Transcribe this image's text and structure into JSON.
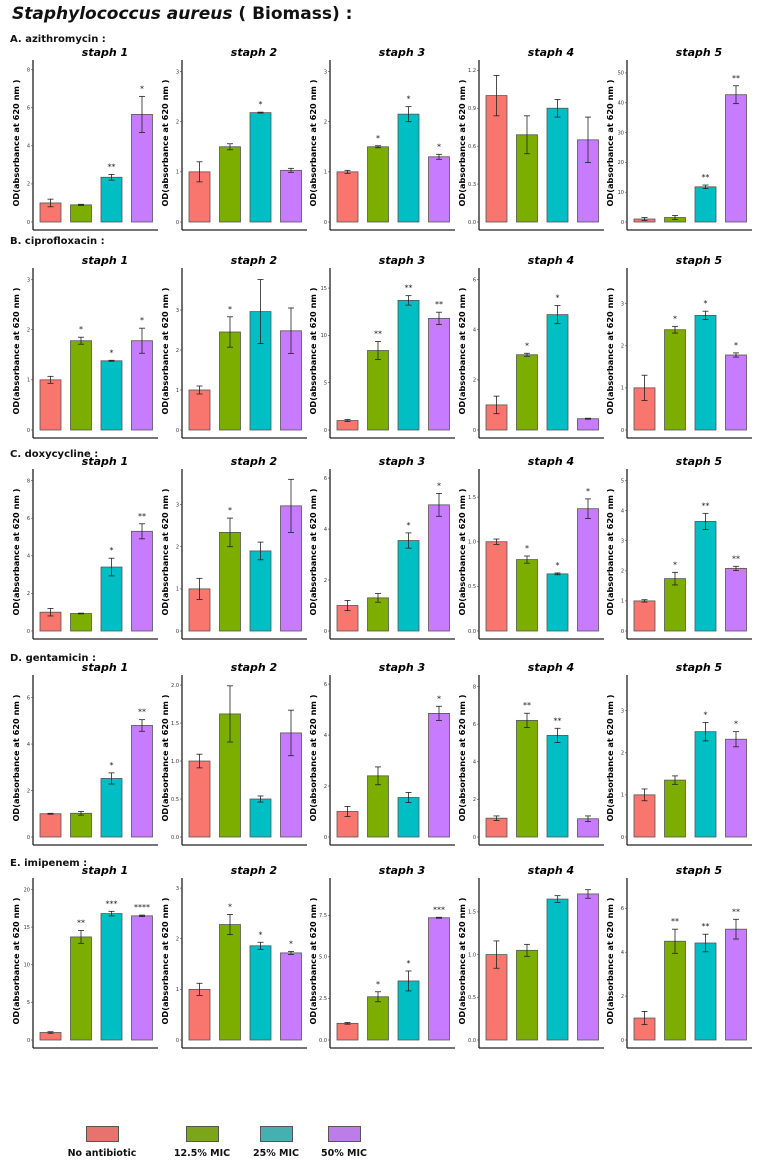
{
  "chart_data": {
    "type": "bar",
    "title_italic": "Staphylococcus aureus",
    "title_rest": " ( Biomass) :",
    "categories": [
      "No antibiotic",
      "12.5% MIC",
      "25% MIC",
      "50% MIC"
    ],
    "colors": [
      "#F8766D",
      "#7CAE00",
      "#00BFC4",
      "#C77CFF"
    ],
    "ylabel": "OD(absorbance at 620 nm )",
    "legend_position": "bottom",
    "rows": [
      {
        "label": "A. azithromycin :",
        "panels": [
          {
            "title": "staph 1",
            "ymax": 8.3,
            "yticks": [
              0,
              2,
              4,
              6,
              8
            ],
            "ytick_labels": [
              "0",
              "2",
              "4",
              "6",
              "8"
            ],
            "values": [
              1.0,
              0.9,
              2.35,
              5.65
            ],
            "errors": [
              0.2,
              0.03,
              0.15,
              0.95
            ],
            "significance": [
              "",
              "",
              "**",
              "*"
            ]
          },
          {
            "title": "staph 2",
            "ymax": 3.15,
            "yticks": [
              0,
              1,
              2,
              3
            ],
            "ytick_labels": [
              "0",
              "1",
              "2",
              "3"
            ],
            "values": [
              1.0,
              1.5,
              2.18,
              1.03
            ],
            "errors": [
              0.2,
              0.06,
              0.01,
              0.04
            ],
            "significance": [
              "",
              "",
              "*",
              ""
            ]
          },
          {
            "title": "staph 3",
            "ymax": 3.15,
            "yticks": [
              0,
              1,
              2,
              3
            ],
            "ytick_labels": [
              "0",
              "1",
              "2",
              "3"
            ],
            "values": [
              1.0,
              1.5,
              2.15,
              1.3
            ],
            "errors": [
              0.03,
              0.02,
              0.15,
              0.05
            ],
            "significance": [
              "",
              "*",
              "*",
              "*"
            ]
          },
          {
            "title": "staph 4",
            "ymax": 1.25,
            "yticks": [
              0,
              0.3,
              0.6,
              0.9,
              1.2
            ],
            "ytick_labels": [
              "0.0",
              "0.3",
              "0.6",
              "0.9",
              "1.2"
            ],
            "values": [
              1.0,
              0.69,
              0.9,
              0.65
            ],
            "errors": [
              0.16,
              0.15,
              0.07,
              0.18
            ],
            "significance": [
              "",
              "",
              "",
              ""
            ]
          },
          {
            "title": "staph 5",
            "ymax": 53,
            "yticks": [
              0,
              10,
              20,
              30,
              40,
              50
            ],
            "ytick_labels": [
              "0",
              "10",
              "20",
              "30",
              "40",
              "50"
            ],
            "values": [
              1.0,
              1.5,
              11.8,
              42.7
            ],
            "errors": [
              0.5,
              0.7,
              0.6,
              3.0
            ],
            "significance": [
              "",
              "",
              "**",
              "**"
            ]
          }
        ]
      },
      {
        "label": "B. ciprofloxacin :",
        "panels": [
          {
            "title": "staph 1",
            "ymax": 3.15,
            "yticks": [
              0,
              1,
              2,
              3
            ],
            "ytick_labels": [
              "0",
              "1",
              "2",
              "3"
            ],
            "values": [
              1.0,
              1.78,
              1.38,
              1.78
            ],
            "errors": [
              0.07,
              0.07,
              0.01,
              0.25
            ],
            "significance": [
              "",
              "*",
              "*",
              "*"
            ]
          },
          {
            "title": "staph 2",
            "ymax": 3.95,
            "yticks": [
              0,
              1,
              2,
              3
            ],
            "ytick_labels": [
              "0",
              "1",
              "2",
              "3"
            ],
            "values": [
              1.0,
              2.45,
              2.96,
              2.48
            ],
            "errors": [
              0.1,
              0.38,
              0.8,
              0.57
            ],
            "significance": [
              "",
              "*",
              "",
              ""
            ]
          },
          {
            "title": "staph 3",
            "ymax": 16.7,
            "yticks": [
              0,
              5,
              10,
              15
            ],
            "ytick_labels": [
              "0",
              "5",
              "10",
              "15"
            ],
            "values": [
              1.0,
              8.4,
              13.7,
              11.8
            ],
            "errors": [
              0.1,
              0.95,
              0.5,
              0.65
            ],
            "significance": [
              "",
              "**",
              "**",
              "**"
            ]
          },
          {
            "title": "staph 4",
            "ymax": 6.3,
            "yticks": [
              0,
              2,
              4,
              6
            ],
            "ytick_labels": [
              "0",
              "2",
              "4",
              "6"
            ],
            "values": [
              1.0,
              3.0,
              4.6,
              0.45
            ],
            "errors": [
              0.35,
              0.06,
              0.36,
              0.02
            ],
            "significance": [
              "",
              "*",
              "*",
              ""
            ]
          },
          {
            "title": "staph 5",
            "ymax": 3.75,
            "yticks": [
              0,
              1,
              2,
              3
            ],
            "ytick_labels": [
              "0",
              "1",
              "2",
              "3"
            ],
            "values": [
              1.0,
              2.38,
              2.72,
              1.78
            ],
            "errors": [
              0.3,
              0.08,
              0.1,
              0.05
            ],
            "significance": [
              "",
              "*",
              "*",
              "*"
            ]
          }
        ]
      },
      {
        "label": "C. doxycycline :",
        "panels": [
          {
            "title": "staph 1",
            "ymax": 8.4,
            "yticks": [
              0,
              2,
              4,
              6,
              8
            ],
            "ytick_labels": [
              "0",
              "2",
              "4",
              "6",
              "8"
            ],
            "values": [
              1.0,
              0.93,
              3.4,
              5.3
            ],
            "errors": [
              0.2,
              0.02,
              0.47,
              0.4
            ],
            "significance": [
              "",
              "",
              "*",
              "**"
            ]
          },
          {
            "title": "staph 2",
            "ymax": 3.75,
            "yticks": [
              0,
              1,
              2,
              3
            ],
            "ytick_labels": [
              "0",
              "1",
              "2",
              "3"
            ],
            "values": [
              1.0,
              2.34,
              1.9,
              2.97
            ],
            "errors": [
              0.25,
              0.34,
              0.21,
              0.63
            ],
            "significance": [
              "",
              "*",
              "",
              ""
            ]
          },
          {
            "title": "staph 3",
            "ymax": 6.2,
            "yticks": [
              0,
              2,
              4,
              6
            ],
            "ytick_labels": [
              "0",
              "2",
              "4",
              "6"
            ],
            "values": [
              1.0,
              1.3,
              3.55,
              4.95
            ],
            "errors": [
              0.2,
              0.17,
              0.3,
              0.45
            ],
            "significance": [
              "",
              "",
              "*",
              "*"
            ]
          },
          {
            "title": "staph 4",
            "ymax": 1.77,
            "yticks": [
              0,
              0.5,
              1.0,
              1.5
            ],
            "ytick_labels": [
              "0.0",
              "0.5",
              "1.0",
              "1.5"
            ],
            "values": [
              1.0,
              0.8,
              0.64,
              1.37
            ],
            "errors": [
              0.03,
              0.04,
              0.01,
              0.11
            ],
            "significance": [
              "",
              "*",
              "*",
              "*"
            ]
          },
          {
            "title": "staph 5",
            "ymax": 5.25,
            "yticks": [
              0,
              1,
              2,
              3,
              4,
              5
            ],
            "ytick_labels": [
              "0",
              "1",
              "2",
              "3",
              "4",
              "5"
            ],
            "values": [
              1.0,
              1.74,
              3.64,
              2.08
            ],
            "errors": [
              0.04,
              0.21,
              0.27,
              0.07
            ],
            "significance": [
              "",
              "*",
              "**",
              "**"
            ]
          }
        ]
      },
      {
        "label": "D. gentamicin :",
        "panels": [
          {
            "title": "staph 1",
            "ymax": 6.8,
            "yticks": [
              0,
              2,
              4,
              6
            ],
            "ytick_labels": [
              "0",
              "2",
              "4",
              "6"
            ],
            "values": [
              1.0,
              1.02,
              2.52,
              4.8
            ],
            "errors": [
              0.02,
              0.08,
              0.24,
              0.25
            ],
            "significance": [
              "",
              "",
              "*",
              "**"
            ]
          },
          {
            "title": "staph 2",
            "ymax": 2.08,
            "yticks": [
              0,
              0.5,
              1.0,
              1.5,
              2.0
            ],
            "ytick_labels": [
              "0.0",
              "0.5",
              "1.0",
              "1.5",
              "2.0"
            ],
            "values": [
              1.0,
              1.62,
              0.5,
              1.37
            ],
            "errors": [
              0.09,
              0.37,
              0.04,
              0.3
            ],
            "significance": [
              "",
              "",
              "",
              ""
            ]
          },
          {
            "title": "staph 3",
            "ymax": 6.2,
            "yticks": [
              0,
              2,
              4,
              6
            ],
            "ytick_labels": [
              "0",
              "2",
              "4",
              "6"
            ],
            "values": [
              1.0,
              2.4,
              1.55,
              4.85
            ],
            "errors": [
              0.2,
              0.35,
              0.2,
              0.28
            ],
            "significance": [
              "",
              "",
              "",
              "*"
            ]
          },
          {
            "title": "staph 4",
            "ymax": 8.4,
            "yticks": [
              0,
              2,
              4,
              6,
              8
            ],
            "ytick_labels": [
              "0",
              "2",
              "4",
              "6",
              "8"
            ],
            "values": [
              1.0,
              6.2,
              5.4,
              0.97
            ],
            "errors": [
              0.12,
              0.38,
              0.38,
              0.15
            ],
            "significance": [
              "",
              "**",
              "**",
              ""
            ]
          },
          {
            "title": "staph 5",
            "ymax": 3.75,
            "yticks": [
              0,
              1,
              2,
              3
            ],
            "ytick_labels": [
              "0",
              "1",
              "2",
              "3"
            ],
            "values": [
              1.0,
              1.35,
              2.5,
              2.32
            ],
            "errors": [
              0.14,
              0.1,
              0.22,
              0.18
            ],
            "significance": [
              "",
              "",
              "*",
              "*"
            ]
          }
        ]
      },
      {
        "label": "E. imipenem :",
        "panels": [
          {
            "title": "staph 1",
            "ymax": 21,
            "yticks": [
              0,
              5,
              10,
              15,
              20
            ],
            "ytick_labels": [
              "0",
              "5",
              "10",
              "15",
              "20"
            ],
            "values": [
              1.0,
              13.7,
              16.8,
              16.5
            ],
            "errors": [
              0.1,
              0.85,
              0.3,
              0.1
            ],
            "significance": [
              "",
              "**",
              "***",
              "****"
            ]
          },
          {
            "title": "staph 2",
            "ymax": 3.12,
            "yticks": [
              0,
              1,
              2,
              3
            ],
            "ytick_labels": [
              "0",
              "1",
              "2",
              "3"
            ],
            "values": [
              1.0,
              2.28,
              1.86,
              1.72
            ],
            "errors": [
              0.12,
              0.2,
              0.07,
              0.03
            ],
            "significance": [
              "",
              "*",
              "*",
              "*"
            ]
          },
          {
            "title": "staph 3",
            "ymax": 9.5,
            "yticks": [
              0,
              2.5,
              5.0,
              7.5
            ],
            "ytick_labels": [
              "0.0",
              "2.5",
              "5.0",
              "7.5"
            ],
            "values": [
              1.0,
              2.6,
              3.55,
              7.35
            ],
            "errors": [
              0.05,
              0.3,
              0.6,
              0.03
            ],
            "significance": [
              "",
              "*",
              "*",
              "***"
            ]
          },
          {
            "title": "staph 4",
            "ymax": 1.85,
            "yticks": [
              0,
              0.5,
              1.0,
              1.5
            ],
            "ytick_labels": [
              "0.0",
              "0.5",
              "1.0",
              "1.5"
            ],
            "values": [
              1.0,
              1.05,
              1.65,
              1.71
            ],
            "errors": [
              0.16,
              0.07,
              0.04,
              0.05
            ],
            "significance": [
              "",
              "",
              "",
              ""
            ]
          },
          {
            "title": "staph 5",
            "ymax": 7.2,
            "yticks": [
              0,
              2,
              4,
              6
            ],
            "ytick_labels": [
              "0",
              "2",
              "4",
              "6"
            ],
            "values": [
              1.0,
              4.5,
              4.42,
              5.05
            ],
            "errors": [
              0.3,
              0.55,
              0.4,
              0.45
            ],
            "significance": [
              "",
              "**",
              "**",
              "**"
            ]
          }
        ]
      }
    ]
  }
}
